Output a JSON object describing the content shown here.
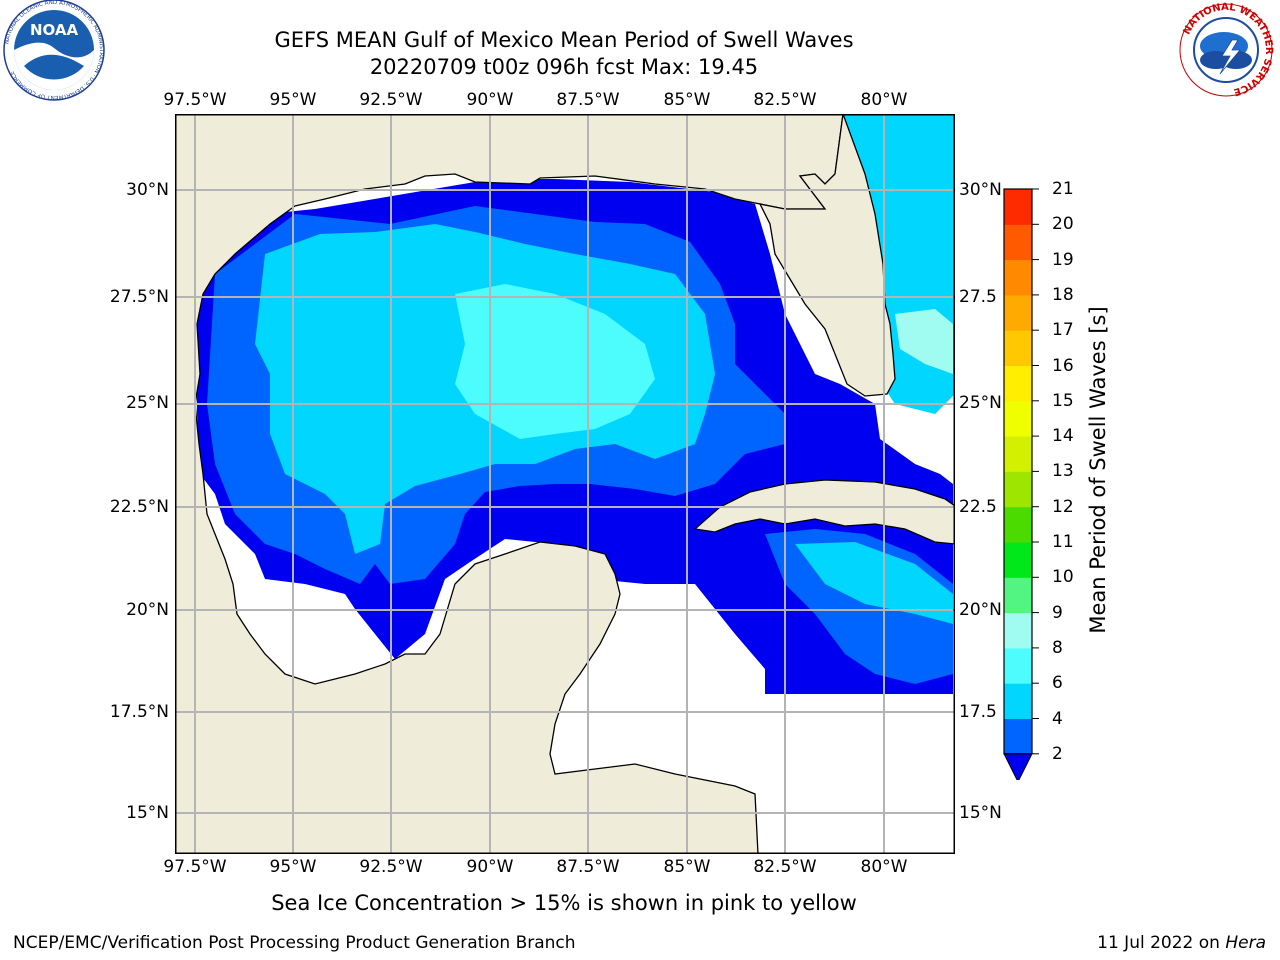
{
  "header": {
    "title_line1": "GEFS MEAN Gulf of Mexico Mean Period of Swell Waves",
    "title_line2": "20220709 t00z 096h fcst   Max: 19.45"
  },
  "logos": {
    "noaa_text": "NOAA",
    "noaa_ring": "NATIONAL OCEANIC AND ATMOSPHERIC ADMINISTRATION · U.S. DEPARTMENT OF COMMERCE",
    "nws_ring": "NATIONAL WEATHER SERVICE"
  },
  "map": {
    "lon_labels": [
      "97.5°W",
      "95°W",
      "92.5°W",
      "90°W",
      "87.5°W",
      "85°W",
      "82.5°W",
      "80°W"
    ],
    "lat_labels_left": [
      "30°N",
      "27.5°N",
      "25°N",
      "22.5°N",
      "20°N",
      "17.5°N",
      "15°N"
    ],
    "lat_labels_right": [
      "30°N",
      "27.5",
      "25°N",
      "22.5",
      "20°N",
      "17.5",
      "15°N"
    ],
    "extent": {
      "lon_min": -98,
      "lon_max": -78.3,
      "lat_min": 14,
      "lat_max": 31.8
    },
    "gridlines": true,
    "colors": {
      "land": "#efedd9",
      "no_data": "#ffffff",
      "grid": "#b4b4b4"
    }
  },
  "colorbar": {
    "label": "Mean Period of Swell Waves [s]",
    "ticks": [
      "2",
      "4",
      "6",
      "8",
      "9",
      "10",
      "11",
      "12",
      "13",
      "14",
      "15",
      "16",
      "17",
      "18",
      "19",
      "20",
      "21"
    ],
    "levels": [
      2,
      4,
      6,
      8,
      9,
      10,
      11,
      12,
      13,
      14,
      15,
      16,
      17,
      18,
      19,
      20,
      21
    ],
    "colors": [
      "#0064ff",
      "#00d6ff",
      "#4dfcfc",
      "#a0fcf0",
      "#52f582",
      "#00e81a",
      "#4bdb00",
      "#9ee600",
      "#d2f000",
      "#efff00",
      "#ffee00",
      "#ffc800",
      "#ffaa00",
      "#ff8a00",
      "#ff5a00",
      "#ff2a00"
    ],
    "under_color": "#0000f0",
    "extend": "min"
  },
  "caption": "Sea Ice Concentration > 15% is shown in pink to yellow",
  "footer": {
    "left": "NCEP/EMC/Verification Post Processing Product Generation Branch",
    "date": "11 Jul 2022 on ",
    "host": "Hera"
  }
}
